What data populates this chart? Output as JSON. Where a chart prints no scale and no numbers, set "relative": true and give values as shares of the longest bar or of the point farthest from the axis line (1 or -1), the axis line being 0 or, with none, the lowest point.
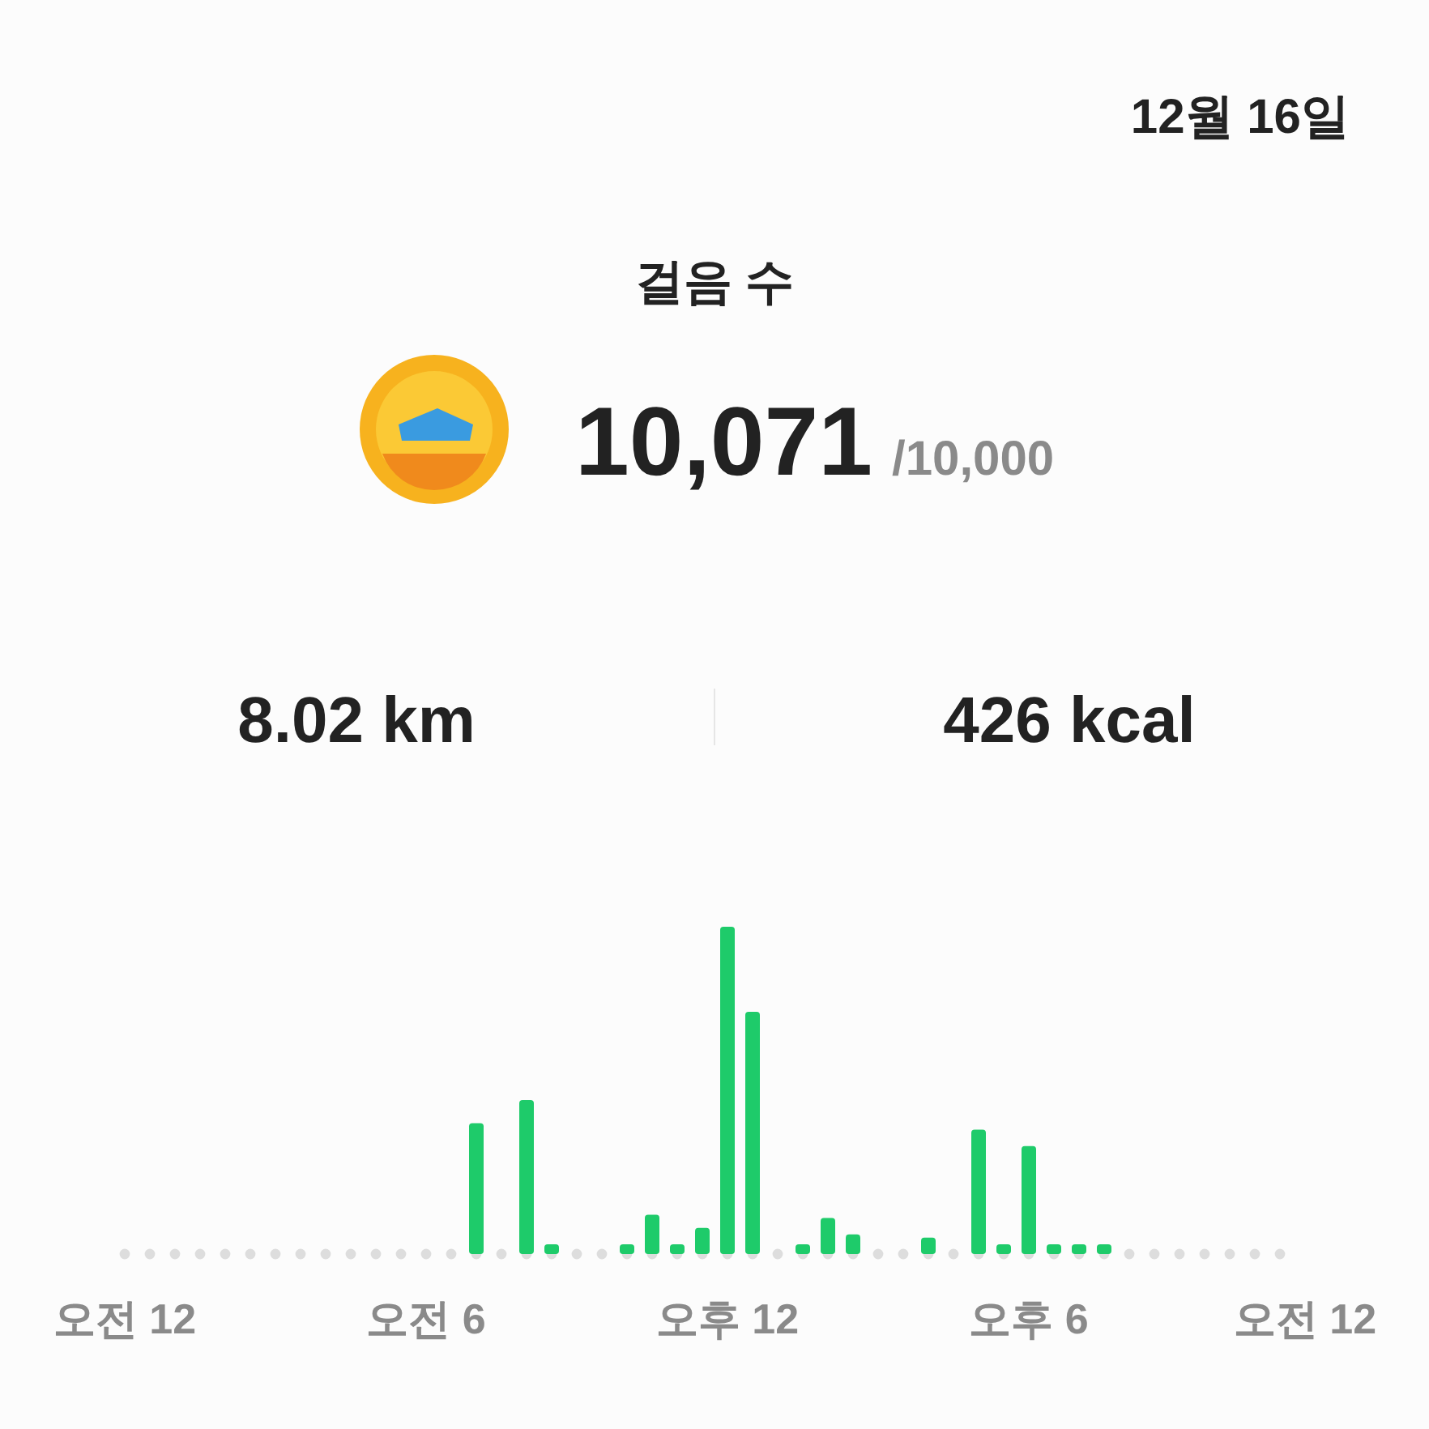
{
  "chart_data": {
    "type": "bar",
    "relative": true,
    "title": "걸음 수",
    "color": "#1ecb6a",
    "ref_lines": [
      {
        "axis": "y",
        "value": 0,
        "color": "#dddddd",
        "line_style": "dotted"
      }
    ],
    "annotations": [
      "12월 16일",
      "10,071",
      "/10,000",
      "8.02 km",
      "426 kcal"
    ],
    "categories": [
      "오전 12",
      null,
      null,
      null,
      null,
      null,
      null,
      null,
      null,
      null,
      null,
      null,
      "오전 6",
      null,
      null,
      null,
      null,
      null,
      null,
      null,
      null,
      null,
      null,
      null,
      "오후 12",
      null,
      null,
      null,
      null,
      null,
      null,
      null,
      null,
      null,
      null,
      null,
      "오후 6",
      null,
      null,
      null,
      null,
      null,
      null,
      null,
      null,
      null,
      null,
      "오전 12"
    ],
    "values": [
      null,
      null,
      null,
      null,
      null,
      null,
      null,
      null,
      null,
      null,
      null,
      null,
      null,
      null,
      0.4,
      null,
      0.47,
      0.03,
      null,
      null,
      0.03,
      0.12,
      0.03,
      0.08,
      1,
      0.74,
      null,
      0.03,
      0.11,
      0.06,
      null,
      null,
      0.05,
      null,
      0.38,
      0.03,
      0.33,
      0.03,
      0.03,
      0.03,
      null,
      null,
      null,
      null,
      null,
      null,
      null,
      null
    ]
  }
}
